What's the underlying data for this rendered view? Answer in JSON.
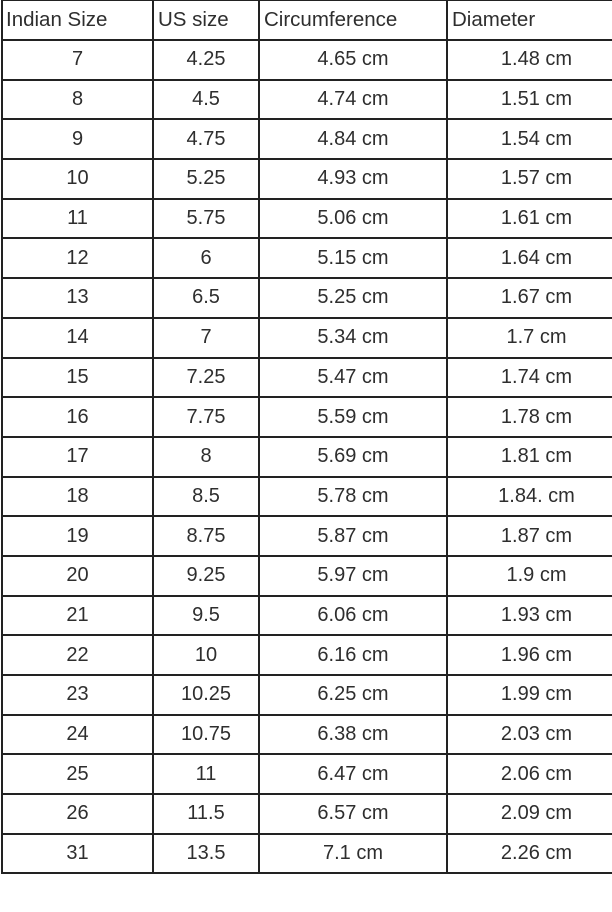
{
  "table": {
    "headers": [
      "Indian Size",
      "US size",
      "Circumference",
      "Diameter"
    ],
    "rows": [
      [
        "7",
        "4.25",
        "4.65 cm",
        "1.48 cm"
      ],
      [
        "8",
        "4.5",
        "4.74 cm",
        "1.51 cm"
      ],
      [
        "9",
        "4.75",
        "4.84 cm",
        "1.54 cm"
      ],
      [
        "10",
        "5.25",
        "4.93 cm",
        "1.57 cm"
      ],
      [
        "11",
        "5.75",
        "5.06 cm",
        "1.61 cm"
      ],
      [
        "12",
        "6",
        "5.15 cm",
        "1.64 cm"
      ],
      [
        "13",
        "6.5",
        "5.25 cm",
        "1.67 cm"
      ],
      [
        "14",
        "7",
        "5.34 cm",
        "1.7 cm"
      ],
      [
        "15",
        "7.25",
        "5.47 cm",
        "1.74 cm"
      ],
      [
        "16",
        "7.75",
        "5.59 cm",
        "1.78 cm"
      ],
      [
        "17",
        "8",
        "5.69 cm",
        "1.81 cm"
      ],
      [
        "18",
        "8.5",
        "5.78 cm",
        "1.84. cm"
      ],
      [
        "19",
        "8.75",
        "5.87 cm",
        "1.87 cm"
      ],
      [
        "20",
        "9.25",
        "5.97 cm",
        "1.9 cm"
      ],
      [
        "21",
        "9.5",
        "6.06 cm",
        "1.93 cm"
      ],
      [
        "22",
        "10",
        "6.16 cm",
        "1.96 cm"
      ],
      [
        "23",
        "10.25",
        "6.25 cm",
        "1.99 cm"
      ],
      [
        "24",
        "10.75",
        "6.38 cm",
        "2.03 cm"
      ],
      [
        "25",
        "11",
        "6.47 cm",
        "2.06 cm"
      ],
      [
        "26",
        "11.5",
        "6.57 cm",
        "2.09 cm"
      ],
      [
        "31",
        "13.5",
        "7.1 cm",
        "2.26 cm"
      ]
    ]
  }
}
